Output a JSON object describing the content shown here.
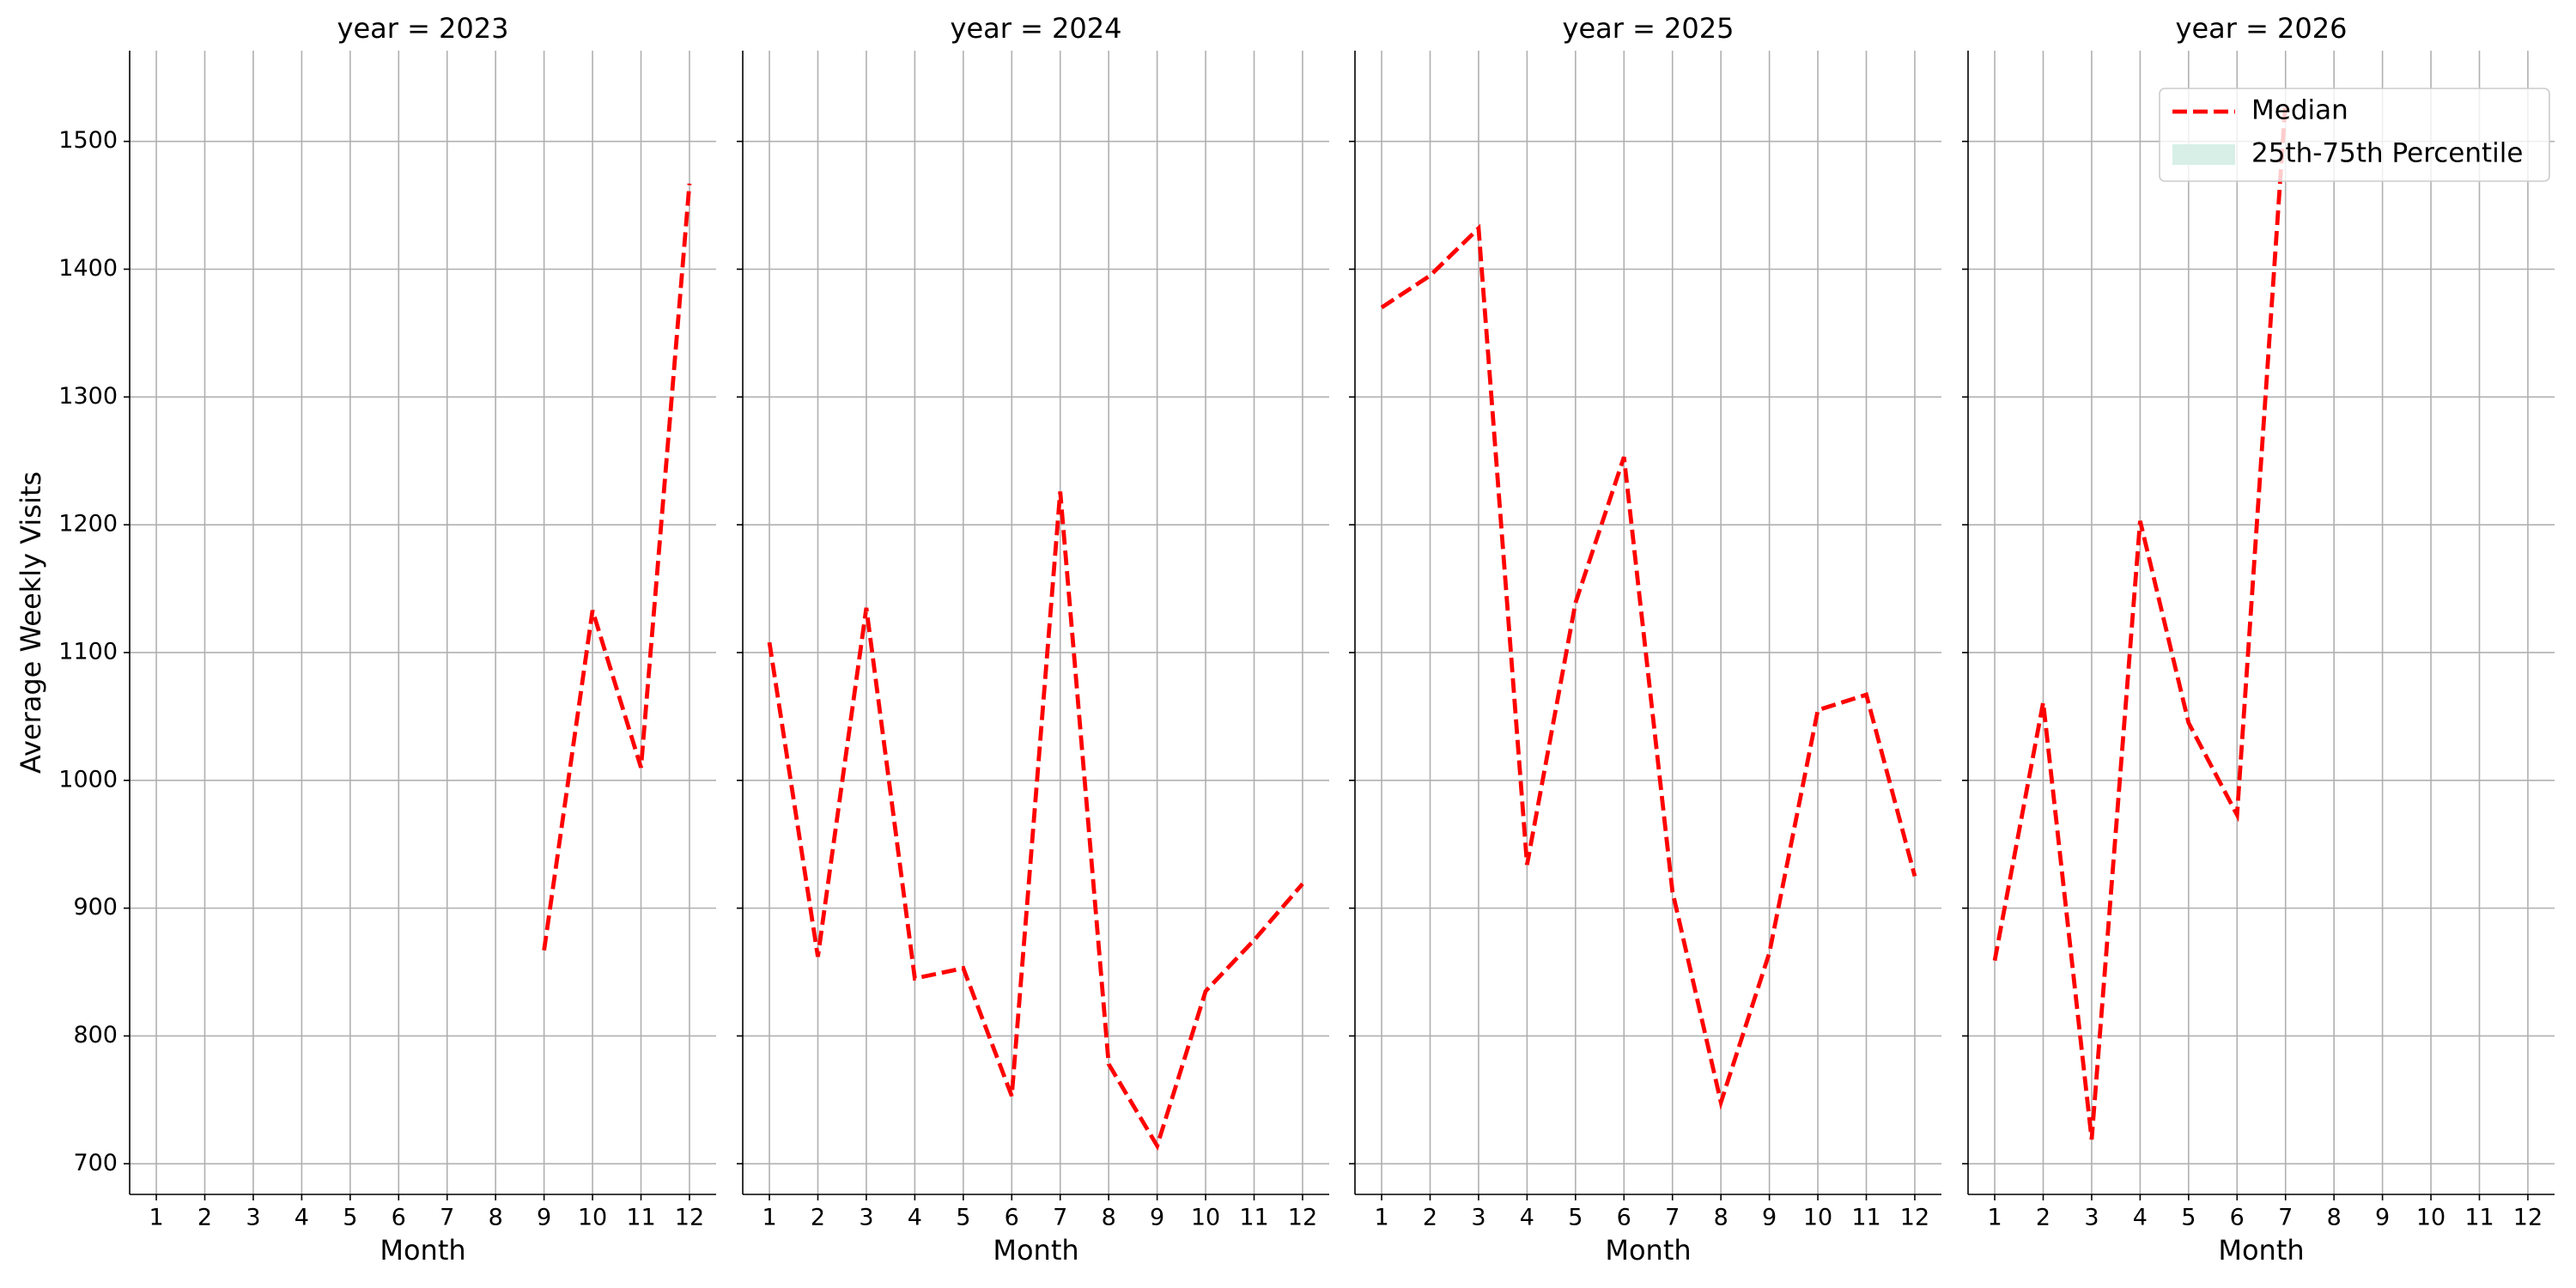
{
  "chart_data": [
    {
      "type": "line",
      "title": "year = 2023",
      "xlabel": "Month",
      "ylabel": "Average Weekly Visits",
      "x": [
        9,
        10,
        11,
        12
      ],
      "series": [
        {
          "color": "#ff0000",
          "values": [
            867,
            1133,
            1010,
            1467
          ]
        }
      ],
      "xlim": [
        0.45,
        12.55
      ],
      "xticks": [
        1,
        2,
        3,
        4,
        5,
        6,
        7,
        8,
        9,
        10,
        11,
        12
      ],
      "ylim": [
        676,
        1571
      ],
      "yticks": [
        700,
        800,
        900,
        1000,
        1100,
        1200,
        1300,
        1400,
        1500
      ],
      "grid": true,
      "show_ytick_labels": true
    },
    {
      "type": "line",
      "title": "year = 2024",
      "xlabel": "Month",
      "x": [
        1,
        2,
        3,
        4,
        5,
        6,
        7,
        8,
        9,
        10,
        11,
        12
      ],
      "series": [
        {
          "color": "#ff0000",
          "values": [
            1108,
            862,
            1135,
            845,
            853,
            753,
            1226,
            778,
            714,
            835,
            875,
            919
          ]
        }
      ],
      "xlim": [
        0.45,
        12.55
      ],
      "xticks": [
        1,
        2,
        3,
        4,
        5,
        6,
        7,
        8,
        9,
        10,
        11,
        12
      ],
      "ylim": [
        676,
        1571
      ],
      "yticks": [
        700,
        800,
        900,
        1000,
        1100,
        1200,
        1300,
        1400,
        1500
      ],
      "grid": true,
      "show_ytick_labels": false
    },
    {
      "type": "line",
      "title": "year = 2025",
      "xlabel": "Month",
      "x": [
        1,
        2,
        3,
        4,
        5,
        6,
        7,
        8,
        9,
        10,
        11,
        12
      ],
      "series": [
        {
          "color": "#ff0000",
          "values": [
            1370,
            1395,
            1432,
            934,
            1139,
            1253,
            913,
            748,
            865,
            1055,
            1067,
            925
          ]
        }
      ],
      "xlim": [
        0.45,
        12.55
      ],
      "xticks": [
        1,
        2,
        3,
        4,
        5,
        6,
        7,
        8,
        9,
        10,
        11,
        12
      ],
      "ylim": [
        676,
        1571
      ],
      "yticks": [
        700,
        800,
        900,
        1000,
        1100,
        1200,
        1300,
        1400,
        1500
      ],
      "grid": true,
      "show_ytick_labels": false
    },
    {
      "type": "line",
      "title": "year = 2026",
      "xlabel": "Month",
      "x": [
        1,
        2,
        3,
        4,
        5,
        6,
        7
      ],
      "series": [
        {
          "name": "Median",
          "color": "#ff0000",
          "values": [
            859,
            1061,
            719,
            1203,
            1045,
            973,
            1531
          ]
        }
      ],
      "band_legend": {
        "name": "25th-75th Percentile",
        "color": "#d7efe6"
      },
      "legend": "upper right",
      "xlim": [
        0.45,
        12.55
      ],
      "xticks": [
        1,
        2,
        3,
        4,
        5,
        6,
        7,
        8,
        9,
        10,
        11,
        12
      ],
      "ylim": [
        676,
        1571
      ],
      "yticks": [
        700,
        800,
        900,
        1000,
        1100,
        1200,
        1300,
        1400,
        1500
      ],
      "grid": true,
      "show_ytick_labels": false
    }
  ]
}
